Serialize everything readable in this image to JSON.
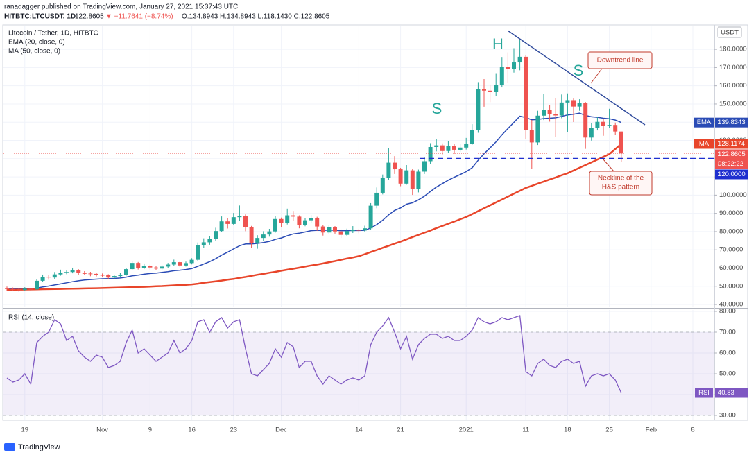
{
  "header": {
    "publisher": "ranadagger published on TradingView.com, January 27, 2021 15:37:43 UTC",
    "symbol": "HITBTC:LTCUSDT, 1D",
    "last": "122.8605",
    "change": "▼ −11.7641 (−8.74%)",
    "ohlc": "O:134.8943 H:134.8943 L:118.1430 C:122.8605"
  },
  "chart_data": [
    {
      "type": "candlestick",
      "title": "Litecoin / Tether, 1D, HITBTC",
      "currency": "USDT",
      "categories": [
        null,
        null,
        null,
        "19",
        null,
        null,
        null,
        null,
        null,
        null,
        null,
        null,
        null,
        null,
        null,
        null,
        "Nov",
        null,
        null,
        null,
        null,
        null,
        null,
        null,
        "9",
        null,
        null,
        null,
        null,
        null,
        null,
        "16",
        null,
        null,
        null,
        null,
        null,
        null,
        "23",
        null,
        null,
        null,
        null,
        null,
        null,
        null,
        "Dec",
        null,
        null,
        null,
        null,
        null,
        null,
        null,
        null,
        null,
        null,
        null,
        null,
        "14",
        null,
        null,
        null,
        null,
        null,
        null,
        "21",
        null,
        null,
        null,
        null,
        null,
        null,
        null,
        null,
        null,
        null,
        "2021",
        null,
        null,
        null,
        null,
        null,
        null,
        null,
        null,
        null,
        "11",
        null,
        null,
        null,
        null,
        null,
        null,
        "18",
        null,
        null,
        null,
        null,
        null,
        null,
        "25",
        null,
        null,
        null,
        null,
        null,
        null,
        "Feb",
        null,
        null,
        null,
        null,
        null,
        null,
        "8"
      ],
      "open": [
        48.9,
        48.5,
        48.2,
        48.0,
        48.6,
        48.3,
        53.0,
        55.2,
        54.8,
        56.5,
        57.3,
        57.8,
        58.9,
        57.2,
        57.0,
        56.8,
        56.2,
        56.1,
        54.8,
        55.6,
        56.3,
        59.4,
        62.8,
        60.1,
        61.2,
        60.3,
        59.7,
        60.8,
        61.9,
        63.2,
        61.4,
        62.7,
        64.5,
        72.6,
        74.1,
        75.8,
        80.3,
        85.6,
        84.2,
        87.9,
        88.6,
        82.4,
        73.8,
        76.5,
        78.4,
        80.1,
        86.9,
        84.7,
        88.9,
        88.2,
        83.5,
        86.2,
        87.4,
        82.8,
        79.5,
        82.3,
        80.1,
        78.2,
        80.3,
        80.9,
        80.6,
        81.8,
        94.2,
        101.3,
        109.5,
        117.8,
        114.2,
        106.3,
        113.6,
        103.2,
        112.9,
        118.6,
        126.4,
        127.3,
        124.2,
        126.9,
        124.9,
        126.1,
        128.3,
        135.6,
        158.2,
        157.3,
        156.8,
        160.5,
        170.2,
        169.1,
        172.8,
        175.9,
        135.8,
        128.9,
        143.6,
        146.8,
        144.5,
        143.7,
        150.8,
        152.1,
        148.6,
        150.4,
        131.6,
        136.8,
        140.2,
        137.9,
        138.5,
        134.8943,
        null,
        null,
        null,
        null,
        null,
        null,
        null,
        null,
        null,
        null,
        null,
        null
      ],
      "high": [
        49.8,
        49.3,
        48.9,
        49.5,
        49.2,
        53.9,
        56.4,
        56.0,
        57.8,
        59.1,
        58.6,
        60.2,
        59.4,
        58.3,
        57.9,
        57.4,
        57.0,
        56.6,
        56.3,
        57.2,
        60.1,
        64.0,
        63.3,
        62.5,
        61.8,
        61.0,
        61.5,
        62.8,
        64.6,
        63.9,
        63.5,
        65.4,
        74.0,
        76.3,
        77.4,
        82.1,
        88.3,
        87.4,
        90.2,
        94.3,
        89.4,
        83.1,
        78.0,
        80.2,
        81.5,
        88.4,
        87.7,
        92.6,
        91.3,
        88.9,
        87.3,
        89.0,
        88.1,
        83.4,
        83.6,
        83.0,
        81.2,
        81.6,
        83.0,
        81.4,
        83.2,
        95.6,
        104.2,
        111.3,
        125.9,
        121.4,
        115.0,
        116.5,
        114.3,
        114.0,
        120.8,
        128.5,
        130.6,
        128.4,
        129.5,
        128.2,
        127.9,
        131.4,
        138.9,
        162.0,
        163.7,
        160.4,
        166.9,
        175.8,
        178.3,
        180.6,
        185.4,
        177.0,
        141.2,
        146.3,
        155.6,
        149.5,
        153.1,
        155.2,
        155.8,
        153.0,
        152.6,
        151.1,
        139.5,
        143.1,
        141.6,
        147.4,
        139.8,
        134.8943,
        null,
        null,
        null,
        null,
        null,
        null,
        null,
        null,
        null,
        null,
        null,
        null
      ],
      "low": [
        47.6,
        47.3,
        47.1,
        47.4,
        47.5,
        48.0,
        52.4,
        53.6,
        54.1,
        55.8,
        56.6,
        57.1,
        56.0,
        56.1,
        55.5,
        55.4,
        55.0,
        53.9,
        54.2,
        55.0,
        55.8,
        58.9,
        59.2,
        59.4,
        59.1,
        58.8,
        59.2,
        60.1,
        61.3,
        60.5,
        60.8,
        62.0,
        63.8,
        70.9,
        72.8,
        74.9,
        79.6,
        81.7,
        83.5,
        85.8,
        80.2,
        70.9,
        70.6,
        74.8,
        77.2,
        79.4,
        82.6,
        83.9,
        85.7,
        81.8,
        82.9,
        84.5,
        80.4,
        77.8,
        78.6,
        78.9,
        76.5,
        77.6,
        79.2,
        79.0,
        79.9,
        81.0,
        92.8,
        100.4,
        108.2,
        111.6,
        104.9,
        105.7,
        100.1,
        101.5,
        111.6,
        117.2,
        124.0,
        122.3,
        123.1,
        122.6,
        123.8,
        125.0,
        127.6,
        134.2,
        148.5,
        151.0,
        154.3,
        159.1,
        161.7,
        167.2,
        168.5,
        130.6,
        114.3,
        127.5,
        141.2,
        140.3,
        131.8,
        142.2,
        134.6,
        140.1,
        146.3,
        125.4,
        129.9,
        135.5,
        132.6,
        136.8,
        133.0,
        118.143,
        null,
        null,
        null,
        null,
        null,
        null,
        null,
        null,
        null,
        null,
        null,
        null
      ],
      "close": [
        48.5,
        48.2,
        48.0,
        48.6,
        48.3,
        53.0,
        55.2,
        54.8,
        56.5,
        57.3,
        57.8,
        58.9,
        57.2,
        57.0,
        56.8,
        56.2,
        56.1,
        54.8,
        55.6,
        56.3,
        59.4,
        62.8,
        60.1,
        61.2,
        60.3,
        59.7,
        60.8,
        61.9,
        63.2,
        61.4,
        62.7,
        64.5,
        72.6,
        74.1,
        75.8,
        80.3,
        85.6,
        84.2,
        87.9,
        88.6,
        82.4,
        73.8,
        76.5,
        78.4,
        80.1,
        86.9,
        84.7,
        88.9,
        88.2,
        83.5,
        86.2,
        87.4,
        82.8,
        79.5,
        82.3,
        80.1,
        78.2,
        80.3,
        80.9,
        80.6,
        81.8,
        94.2,
        101.3,
        109.5,
        117.8,
        114.2,
        106.3,
        113.6,
        103.2,
        112.9,
        118.6,
        126.4,
        127.3,
        124.2,
        126.9,
        124.9,
        126.1,
        128.3,
        135.6,
        158.2,
        157.3,
        156.8,
        160.5,
        170.2,
        169.1,
        172.8,
        175.9,
        135.8,
        128.9,
        143.6,
        146.8,
        144.5,
        143.7,
        150.8,
        152.1,
        148.6,
        150.4,
        131.6,
        136.8,
        140.2,
        137.9,
        138.5,
        134.9,
        122.8605,
        null,
        null,
        null,
        null,
        null,
        null,
        null,
        null,
        null,
        null,
        null,
        null
      ],
      "up_color": "#26a69a",
      "down_color": "#ef5350",
      "series": [
        {
          "name": "EMA (20, close, 0)",
          "tag": "EMA",
          "color": "#2a4bb5",
          "values": [
            48.8,
            48.7,
            48.6,
            48.6,
            48.6,
            49.0,
            49.6,
            50.1,
            50.7,
            51.3,
            51.9,
            52.5,
            53.0,
            53.4,
            53.7,
            53.9,
            54.1,
            54.2,
            54.3,
            54.5,
            55.0,
            55.7,
            56.1,
            56.6,
            57.0,
            57.2,
            57.6,
            58.0,
            58.5,
            58.8,
            59.2,
            59.7,
            60.9,
            62.2,
            63.5,
            65.1,
            67.1,
            68.7,
            70.5,
            72.2,
            73.2,
            73.2,
            73.5,
            74.0,
            74.6,
            75.7,
            76.5,
            77.7,
            78.7,
            79.1,
            79.8,
            80.5,
            80.7,
            80.6,
            80.8,
            80.7,
            80.5,
            80.5,
            80.6,
            80.6,
            80.7,
            82.0,
            83.8,
            86.2,
            89.2,
            91.6,
            93.0,
            95.0,
            95.8,
            97.4,
            99.4,
            102.0,
            104.4,
            106.3,
            108.2,
            109.8,
            111.3,
            112.9,
            115.0,
            119.1,
            122.7,
            125.9,
            129.2,
            133.1,
            136.5,
            139.9,
            143.3,
            142.6,
            141.3,
            141.5,
            142.0,
            142.2,
            142.4,
            143.2,
            144.0,
            144.4,
            145.0,
            143.7,
            143.0,
            142.7,
            142.2,
            141.9,
            141.2,
            139.8343,
            null,
            null,
            null,
            null,
            null,
            null,
            null,
            null,
            null,
            null,
            null,
            null
          ]
        },
        {
          "name": "MA (50, close, 0)",
          "tag": "MA",
          "color": "#e8452a",
          "values": [
            48.0,
            48.06,
            48.12,
            48.19,
            48.25,
            48.31,
            48.38,
            48.44,
            48.5,
            48.56,
            48.62,
            48.69,
            48.75,
            48.81,
            48.88,
            48.94,
            49.0,
            49.1,
            49.2,
            49.3,
            49.4,
            49.5,
            49.6,
            49.7,
            49.8,
            50.0,
            50.1,
            50.3,
            50.5,
            50.7,
            50.8,
            51.0,
            51.4,
            51.9,
            52.3,
            52.7,
            53.1,
            53.6,
            54.0,
            54.6,
            55.1,
            55.7,
            56.3,
            56.8,
            57.4,
            57.9,
            58.5,
            59.1,
            59.6,
            60.2,
            60.8,
            61.4,
            61.9,
            62.5,
            63.2,
            63.8,
            64.5,
            65.2,
            65.8,
            66.5,
            67.6,
            68.8,
            69.9,
            71.1,
            72.2,
            73.4,
            74.5,
            75.7,
            77.0,
            78.2,
            79.4,
            80.6,
            81.9,
            83.1,
            84.3,
            85.5,
            86.8,
            88.0,
            89.6,
            91.2,
            92.8,
            94.4,
            96.0,
            97.6,
            99.2,
            100.8,
            102.4,
            104.0,
            105.1,
            106.3,
            107.4,
            108.6,
            109.7,
            110.9,
            112.0,
            113.5,
            115.0,
            116.5,
            118.0,
            119.5,
            121.0,
            122.5,
            125.3,
            128.1174,
            null,
            null,
            null,
            null,
            null,
            null,
            null,
            null,
            null,
            null,
            null,
            null
          ]
        }
      ],
      "ylim": [
        38.5,
        192.6
      ],
      "yticks": [
        {
          "value": 40,
          "label": "40.0000"
        },
        {
          "value": 50,
          "label": "50.0000"
        },
        {
          "value": 60,
          "label": "60.0000"
        },
        {
          "value": 70,
          "label": "70.0000"
        },
        {
          "value": 80,
          "label": "80.0000"
        },
        {
          "value": 90,
          "label": "90.0000"
        },
        {
          "value": 100,
          "label": "100.0000"
        },
        {
          "value": 110,
          "label": "110.0000"
        },
        {
          "value": 120,
          "label": "120.0000"
        },
        {
          "value": 130,
          "label": "130.0000"
        },
        {
          "value": 140,
          "label": "140.0000"
        },
        {
          "value": 150,
          "label": "150.0000"
        },
        {
          "value": 160,
          "label": "160.0000"
        },
        {
          "value": 170,
          "label": "170.0000"
        },
        {
          "value": 180,
          "label": "180.0000"
        }
      ],
      "neckline": {
        "value": 120,
        "label": "120.0000"
      },
      "countdown": "08:22:22",
      "annotations": [
        "H",
        "S",
        "S",
        "Downtrend line"
      ],
      "neckline_note": [
        "Neckline of the",
        "H&S pattern"
      ],
      "grid": true
    },
    {
      "type": "line",
      "title": "RSI (14, close)",
      "series": [
        {
          "name": "RSI",
          "color": "#7e57c2",
          "values": [
            48,
            46,
            47,
            50,
            45,
            65,
            68,
            70,
            76,
            74,
            66,
            68,
            61,
            58,
            56,
            59,
            58,
            53,
            54,
            56,
            65,
            71,
            60,
            62,
            59,
            56,
            58,
            60,
            66,
            60,
            62,
            66,
            75,
            76,
            70,
            75,
            77,
            72,
            75,
            76,
            62,
            50,
            49,
            52,
            55,
            62,
            58,
            65,
            63,
            53,
            56,
            56,
            49,
            45,
            49,
            47,
            45,
            47,
            48,
            47,
            49,
            64,
            70,
            73,
            77,
            70,
            62,
            68,
            57,
            64,
            67,
            69,
            69,
            67,
            68,
            66,
            66,
            68,
            71,
            77,
            75,
            74,
            75,
            77,
            76,
            77,
            78,
            51,
            49,
            55,
            57,
            54,
            53,
            56,
            57,
            55,
            56,
            44,
            49,
            50,
            49,
            50,
            47,
            40.83,
            null,
            null,
            null,
            null,
            null,
            null,
            null,
            null,
            null,
            null,
            null,
            null
          ]
        }
      ],
      "band": [
        30,
        70
      ],
      "ylim": [
        28,
        80.67
      ],
      "yticks": [
        {
          "value": 30,
          "label": "30.00"
        },
        {
          "value": 40,
          "label": "40.00"
        },
        {
          "value": 50,
          "label": "50.00"
        },
        {
          "value": 60,
          "label": "60.00"
        },
        {
          "value": 70,
          "label": "70.00"
        },
        {
          "value": 80,
          "label": "80.00"
        }
      ]
    }
  ],
  "footer": {
    "brand": "TradingView"
  }
}
